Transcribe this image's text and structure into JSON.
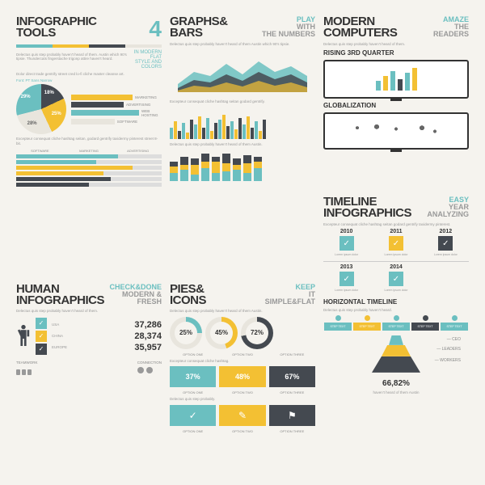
{
  "colors": {
    "teal": "#6bbfc0",
    "yellow": "#f3c033",
    "dark": "#444950",
    "light": "#e8e5dd",
    "gray": "#999"
  },
  "p1": {
    "title": "INFOGRAPHIC",
    "title2": "TOOLS",
    "num": "4",
    "sub1": "IN MODERN",
    "sub2": "FLAT",
    "sub3": "STYLE AND",
    "sub4": "COLORS",
    "font": "Font: PT Sans Narrow",
    "pie": [
      {
        "v": 18,
        "c": "#444950"
      },
      {
        "v": 25,
        "c": "#f3c033"
      },
      {
        "v": 28,
        "c": "#e8e5dd"
      },
      {
        "v": 29,
        "c": "#6bbfc0"
      }
    ],
    "bars": [
      {
        "l": "MARKETING",
        "c": "#f3c033",
        "w": 68
      },
      {
        "l": "ADVERTISING",
        "c": "#444950",
        "w": 58
      },
      {
        "l": "WEB HOSTING",
        "c": "#6bbfc0",
        "w": 75
      },
      {
        "l": "SOFTWARE",
        "c": "#e8e5dd",
        "w": 48
      }
    ],
    "hcols": [
      "SOFTWARE",
      "MARKETING",
      "ADVERTISING"
    ],
    "hbars": [
      [
        70,
        "#6bbfc0"
      ],
      [
        55,
        "#6bbfc0"
      ],
      [
        80,
        "#f3c033"
      ],
      [
        60,
        "#f3c033"
      ],
      [
        65,
        "#444950"
      ],
      [
        50,
        "#444950"
      ]
    ]
  },
  "p2": {
    "title": "GRAPHS&",
    "title2": "BARS",
    "sub1": "PLAY",
    "sub2": "WITH",
    "sub3": "THE NUMBERS",
    "grouped": [
      14,
      22,
      10,
      20,
      8,
      24,
      18,
      28,
      14,
      26,
      10,
      20,
      24,
      30,
      16,
      22,
      12,
      26,
      18,
      28,
      14,
      22,
      10,
      24
    ],
    "gcolors": [
      "#6bbfc0",
      "#f3c033",
      "#444950"
    ],
    "stacked": [
      [
        10,
        8,
        6
      ],
      [
        14,
        6,
        10
      ],
      [
        8,
        12,
        8
      ],
      [
        16,
        8,
        10
      ],
      [
        10,
        14,
        6
      ],
      [
        12,
        10,
        12
      ],
      [
        14,
        6,
        8
      ],
      [
        10,
        12,
        10
      ],
      [
        16,
        8,
        6
      ]
    ]
  },
  "p3": {
    "title": "MODERN",
    "title2": "COMPUTERS",
    "sub1": "AMAZE",
    "sub2": "THE",
    "sub3": "READERS",
    "h1": "RISING 3RD QUARTER",
    "h2": "GLOBALIZATION",
    "mbars": [
      [
        12,
        "#6bbfc0"
      ],
      [
        18,
        "#f3c033"
      ],
      [
        24,
        "#6bbfc0"
      ],
      [
        14,
        "#444950"
      ],
      [
        22,
        "#6bbfc0"
      ],
      [
        28,
        "#f3c033"
      ]
    ]
  },
  "p4": {
    "title": "HUMAN",
    "title2": "INFOGRAPHICS",
    "sub1": "CHECK&DONE",
    "sub2": "MODERN &",
    "sub3": "FRESH",
    "checks": [
      "#6bbfc0",
      "#f3c033",
      "#444950"
    ],
    "stats": [
      {
        "c": "USA",
        "n": "37,286"
      },
      {
        "c": "CHINA",
        "n": "28,374"
      },
      {
        "c": "EUROPE",
        "n": "35,957"
      }
    ],
    "tw": "TEAMWORK",
    "cn": "CONNECTION"
  },
  "p5": {
    "title": "PIES&",
    "title2": "ICONS",
    "sub1": "KEEP",
    "sub2": "IT",
    "sub3": "SIMPLE&FLAT",
    "rings": [
      {
        "p": 25,
        "c": "#6bbfc0"
      },
      {
        "p": 45,
        "c": "#f3c033"
      },
      {
        "p": 72,
        "c": "#444950"
      }
    ],
    "opts": [
      "OPTION ONE",
      "OPTION TWO",
      "OPTION THREE"
    ],
    "boxes": [
      {
        "p": "37%",
        "c": "#6bbfc0"
      },
      {
        "p": "48%",
        "c": "#f3c033"
      },
      {
        "p": "67%",
        "c": "#444950"
      }
    ],
    "icons": [
      {
        "g": "✓",
        "c": "#6bbfc0"
      },
      {
        "g": "✎",
        "c": "#f3c033"
      },
      {
        "g": "⚑",
        "c": "#444950"
      }
    ]
  },
  "p6": {
    "title": "TIMELINE",
    "title2": "INFOGRAPHICS",
    "sub1": "EASY",
    "sub2": "YEAR",
    "sub3": "ANALYZING",
    "years1": [
      {
        "y": "2010",
        "c": "#6bbfc0"
      },
      {
        "y": "2011",
        "c": "#f3c033"
      },
      {
        "y": "2012",
        "c": "#444950"
      }
    ],
    "years2": [
      {
        "y": "2013",
        "c": "#6bbfc0"
      },
      {
        "y": "2014",
        "c": "#6bbfc0"
      }
    ],
    "ht": "HORIZONTAL TIMELINE",
    "htl": [
      "#6bbfc0",
      "#f3c033",
      "#6bbfc0",
      "#444950",
      "#6bbfc0"
    ],
    "pyr": [
      {
        "h": 12,
        "w": 18,
        "c": "#6bbfc0",
        "t": 0,
        "l": "CEO"
      },
      {
        "h": 14,
        "w": 36,
        "c": "#f3c033",
        "t": 12,
        "l": "LEADERS"
      },
      {
        "h": 20,
        "w": 60,
        "c": "#444950",
        "t": 26,
        "l": "WORKERS"
      }
    ],
    "pstat": "66,82%"
  }
}
